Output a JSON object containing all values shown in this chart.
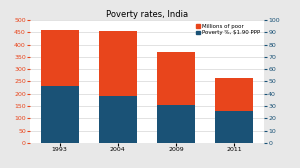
{
  "title": "Poverty rates, India",
  "years": [
    "1993",
    "2004",
    "2009",
    "2011"
  ],
  "millions_of_poor_total": [
    460,
    455,
    370,
    265
  ],
  "poverty_pct_scaled": [
    230,
    190,
    155,
    130
  ],
  "blue_color": "#1a5276",
  "orange_color": "#e8451c",
  "left_ylim": [
    0,
    500
  ],
  "left_yticks": [
    0,
    50,
    100,
    150,
    200,
    250,
    300,
    350,
    400,
    450,
    500
  ],
  "right_ylim": [
    0,
    100
  ],
  "right_yticks": [
    0,
    10,
    20,
    30,
    40,
    50,
    60,
    70,
    80,
    90,
    100
  ],
  "legend_label_orange": "Millions of poor",
  "legend_label_blue": "Poverty %, $1.90 PPP",
  "bar_width": 0.65,
  "background_color": "#e8e8e8",
  "plot_bg_color": "#ffffff",
  "title_fontsize": 6,
  "tick_fontsize": 4.5,
  "legend_fontsize": 4.0,
  "grid_color": "#cccccc",
  "grid_linewidth": 0.4
}
